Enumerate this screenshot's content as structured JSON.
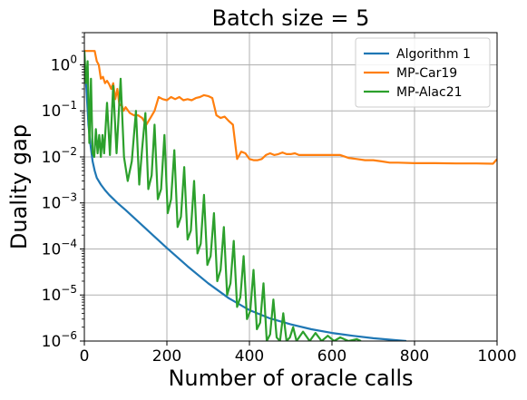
{
  "chart_data": {
    "type": "line",
    "title": "Batch size = 5",
    "xlabel": "Number of oracle calls",
    "ylabel": "Duality gap",
    "xlim": [
      0,
      1000
    ],
    "ylim": [
      1e-06,
      5
    ],
    "yscale": "log",
    "grid": true,
    "legend_position": "top-right",
    "x_ticks": [
      0,
      200,
      400,
      600,
      800,
      1000
    ],
    "x_tick_labels": [
      "0",
      "200",
      "400",
      "600",
      "800",
      "1000"
    ],
    "y_ticks": [
      1,
      0.1,
      0.01,
      0.001,
      0.0001,
      1e-05,
      1e-06
    ],
    "y_tick_labels": [
      {
        "base": "10",
        "exp": "0"
      },
      {
        "base": "10",
        "exp": "−1"
      },
      {
        "base": "10",
        "exp": "−2"
      },
      {
        "base": "10",
        "exp": "−3"
      },
      {
        "base": "10",
        "exp": "−4"
      },
      {
        "base": "10",
        "exp": "−5"
      },
      {
        "base": "10",
        "exp": "−6"
      }
    ],
    "series": [
      {
        "name": "Algorithm 1",
        "color": "#1f77b4",
        "points": [
          [
            0,
            1.2
          ],
          [
            5,
            0.3
          ],
          [
            10,
            0.05
          ],
          [
            15,
            0.018
          ],
          [
            20,
            0.008
          ],
          [
            25,
            0.005
          ],
          [
            30,
            0.0035
          ],
          [
            40,
            0.0025
          ],
          [
            50,
            0.0019
          ],
          [
            60,
            0.0015
          ],
          [
            80,
            0.001
          ],
          [
            100,
            0.0007
          ],
          [
            120,
            0.00048
          ],
          [
            150,
            0.00027
          ],
          [
            200,
            0.000105
          ],
          [
            250,
            4.2e-05
          ],
          [
            300,
            1.8e-05
          ],
          [
            350,
            8.5e-06
          ],
          [
            400,
            4.7e-06
          ],
          [
            450,
            3.1e-06
          ],
          [
            500,
            2.3e-06
          ],
          [
            550,
            1.8e-06
          ],
          [
            600,
            1.5e-06
          ],
          [
            650,
            1.3e-06
          ],
          [
            700,
            1.15e-06
          ],
          [
            750,
            1.05e-06
          ],
          [
            780,
            1e-06
          ]
        ]
      },
      {
        "name": "MP-Car19",
        "color": "#ff7f0e",
        "points": [
          [
            0,
            2.0
          ],
          [
            5,
            2.0
          ],
          [
            10,
            2.0
          ],
          [
            15,
            2.0
          ],
          [
            20,
            2.0
          ],
          [
            25,
            2.0
          ],
          [
            30,
            1.2
          ],
          [
            35,
            1.0
          ],
          [
            40,
            0.5
          ],
          [
            45,
            0.55
          ],
          [
            50,
            0.4
          ],
          [
            55,
            0.45
          ],
          [
            60,
            0.38
          ],
          [
            65,
            0.3
          ],
          [
            70,
            0.4
          ],
          [
            75,
            0.18
          ],
          [
            80,
            0.3
          ],
          [
            85,
            0.13
          ],
          [
            90,
            0.14
          ],
          [
            95,
            0.1
          ],
          [
            100,
            0.12
          ],
          [
            110,
            0.09
          ],
          [
            120,
            0.08
          ],
          [
            130,
            0.08
          ],
          [
            140,
            0.07
          ],
          [
            150,
            0.05
          ],
          [
            160,
            0.07
          ],
          [
            170,
            0.1
          ],
          [
            180,
            0.2
          ],
          [
            190,
            0.18
          ],
          [
            200,
            0.17
          ],
          [
            210,
            0.2
          ],
          [
            220,
            0.18
          ],
          [
            230,
            0.2
          ],
          [
            240,
            0.17
          ],
          [
            250,
            0.18
          ],
          [
            260,
            0.17
          ],
          [
            270,
            0.19
          ],
          [
            280,
            0.2
          ],
          [
            290,
            0.22
          ],
          [
            300,
            0.21
          ],
          [
            310,
            0.19
          ],
          [
            320,
            0.08
          ],
          [
            330,
            0.07
          ],
          [
            340,
            0.075
          ],
          [
            350,
            0.06
          ],
          [
            360,
            0.05
          ],
          [
            370,
            0.009
          ],
          [
            380,
            0.013
          ],
          [
            390,
            0.012
          ],
          [
            400,
            0.009
          ],
          [
            410,
            0.0085
          ],
          [
            420,
            0.0085
          ],
          [
            430,
            0.009
          ],
          [
            440,
            0.011
          ],
          [
            450,
            0.012
          ],
          [
            460,
            0.011
          ],
          [
            470,
            0.0115
          ],
          [
            480,
            0.0125
          ],
          [
            490,
            0.0115
          ],
          [
            500,
            0.0115
          ],
          [
            510,
            0.012
          ],
          [
            520,
            0.011
          ],
          [
            540,
            0.011
          ],
          [
            560,
            0.011
          ],
          [
            580,
            0.011
          ],
          [
            600,
            0.011
          ],
          [
            620,
            0.011
          ],
          [
            640,
            0.0095
          ],
          [
            660,
            0.009
          ],
          [
            680,
            0.0085
          ],
          [
            700,
            0.0085
          ],
          [
            720,
            0.008
          ],
          [
            740,
            0.0075
          ],
          [
            760,
            0.0075
          ],
          [
            800,
            0.0073
          ],
          [
            850,
            0.0073
          ],
          [
            900,
            0.0072
          ],
          [
            950,
            0.0072
          ],
          [
            990,
            0.0071
          ],
          [
            1000,
            0.009
          ]
        ]
      },
      {
        "name": "MP-Alac21",
        "color": "#2ca02c",
        "points": [
          [
            0,
            2.0
          ],
          [
            4,
            0.4
          ],
          [
            8,
            1.2
          ],
          [
            12,
            0.02
          ],
          [
            16,
            0.5
          ],
          [
            20,
            0.012
          ],
          [
            24,
            0.01
          ],
          [
            28,
            0.04
          ],
          [
            32,
            0.012
          ],
          [
            36,
            0.03
          ],
          [
            40,
            0.01
          ],
          [
            44,
            0.03
          ],
          [
            48,
            0.012
          ],
          [
            55,
            0.15
          ],
          [
            62,
            0.011
          ],
          [
            70,
            0.35
          ],
          [
            78,
            0.012
          ],
          [
            88,
            0.5
          ],
          [
            96,
            0.01
          ],
          [
            105,
            0.003
          ],
          [
            115,
            0.008
          ],
          [
            125,
            0.1
          ],
          [
            133,
            0.0025
          ],
          [
            140,
            0.015
          ],
          [
            148,
            0.09
          ],
          [
            155,
            0.002
          ],
          [
            163,
            0.004
          ],
          [
            170,
            0.05
          ],
          [
            178,
            0.0012
          ],
          [
            186,
            0.002
          ],
          [
            194,
            0.03
          ],
          [
            202,
            0.0006
          ],
          [
            210,
            0.0012
          ],
          [
            218,
            0.014
          ],
          [
            226,
            0.0003
          ],
          [
            234,
            0.0005
          ],
          [
            242,
            0.006
          ],
          [
            250,
            0.00016
          ],
          [
            258,
            0.00025
          ],
          [
            266,
            0.003
          ],
          [
            274,
            8e-05
          ],
          [
            282,
            0.00013
          ],
          [
            290,
            0.0015
          ],
          [
            298,
            4.5e-05
          ],
          [
            306,
            7e-05
          ],
          [
            314,
            0.0006
          ],
          [
            322,
            2e-05
          ],
          [
            330,
            3.5e-05
          ],
          [
            338,
            0.0003
          ],
          [
            346,
            1e-05
          ],
          [
            354,
            1.8e-05
          ],
          [
            362,
            0.00015
          ],
          [
            370,
            5.5e-06
          ],
          [
            378,
            9e-06
          ],
          [
            386,
            7e-05
          ],
          [
            394,
            3e-06
          ],
          [
            402,
            4.5e-06
          ],
          [
            410,
            3.5e-05
          ],
          [
            418,
            1.8e-06
          ],
          [
            426,
            2.5e-06
          ],
          [
            434,
            1.8e-05
          ],
          [
            442,
            1e-06
          ],
          [
            450,
            1.4e-06
          ],
          [
            458,
            8e-06
          ],
          [
            466,
            1.2e-06
          ],
          [
            474,
            1e-06
          ],
          [
            482,
            4e-06
          ],
          [
            490,
            1e-06
          ],
          [
            498,
            1.2e-06
          ],
          [
            506,
            2e-06
          ],
          [
            514,
            1e-06
          ],
          [
            530,
            1.6e-06
          ],
          [
            546,
            1e-06
          ],
          [
            560,
            1.5e-06
          ],
          [
            575,
            1e-06
          ],
          [
            590,
            1.3e-06
          ],
          [
            605,
            1e-06
          ],
          [
            620,
            1.2e-06
          ],
          [
            640,
            1e-06
          ],
          [
            660,
            1.1e-06
          ],
          [
            670,
            1e-06
          ]
        ]
      }
    ]
  }
}
